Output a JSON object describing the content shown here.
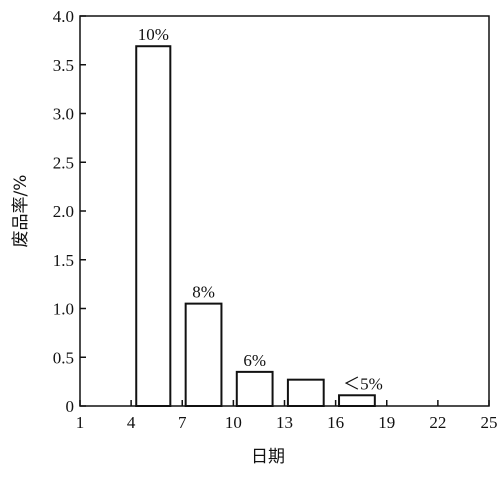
{
  "chart_data": {
    "type": "bar",
    "x_label": "日期",
    "y_label": "废品率/%",
    "x_left": [
      4.3,
      7.2,
      10.2,
      13.2,
      16.2
    ],
    "x_right": [
      6.3,
      9.3,
      12.3,
      15.3,
      18.3
    ],
    "values": [
      3.69,
      1.05,
      0.35,
      0.27,
      0.11
    ],
    "bar_notes": [
      "10%",
      "8%",
      "6%",
      null,
      "＜5%"
    ],
    "color": "#ffffff",
    "xlim": [
      1,
      25
    ],
    "xticks": [
      1,
      4,
      7,
      10,
      13,
      16,
      19,
      22,
      25
    ],
    "ylim": [
      0,
      4
    ],
    "yticks": [
      0,
      0.5,
      {
        "value": 1,
        "label": "1.0"
      },
      1.5,
      {
        "value": 2,
        "label": "2.0"
      },
      2.5,
      {
        "value": 3,
        "label": "3.0"
      },
      3.5,
      {
        "value": 4,
        "label": "4.0"
      }
    ]
  }
}
